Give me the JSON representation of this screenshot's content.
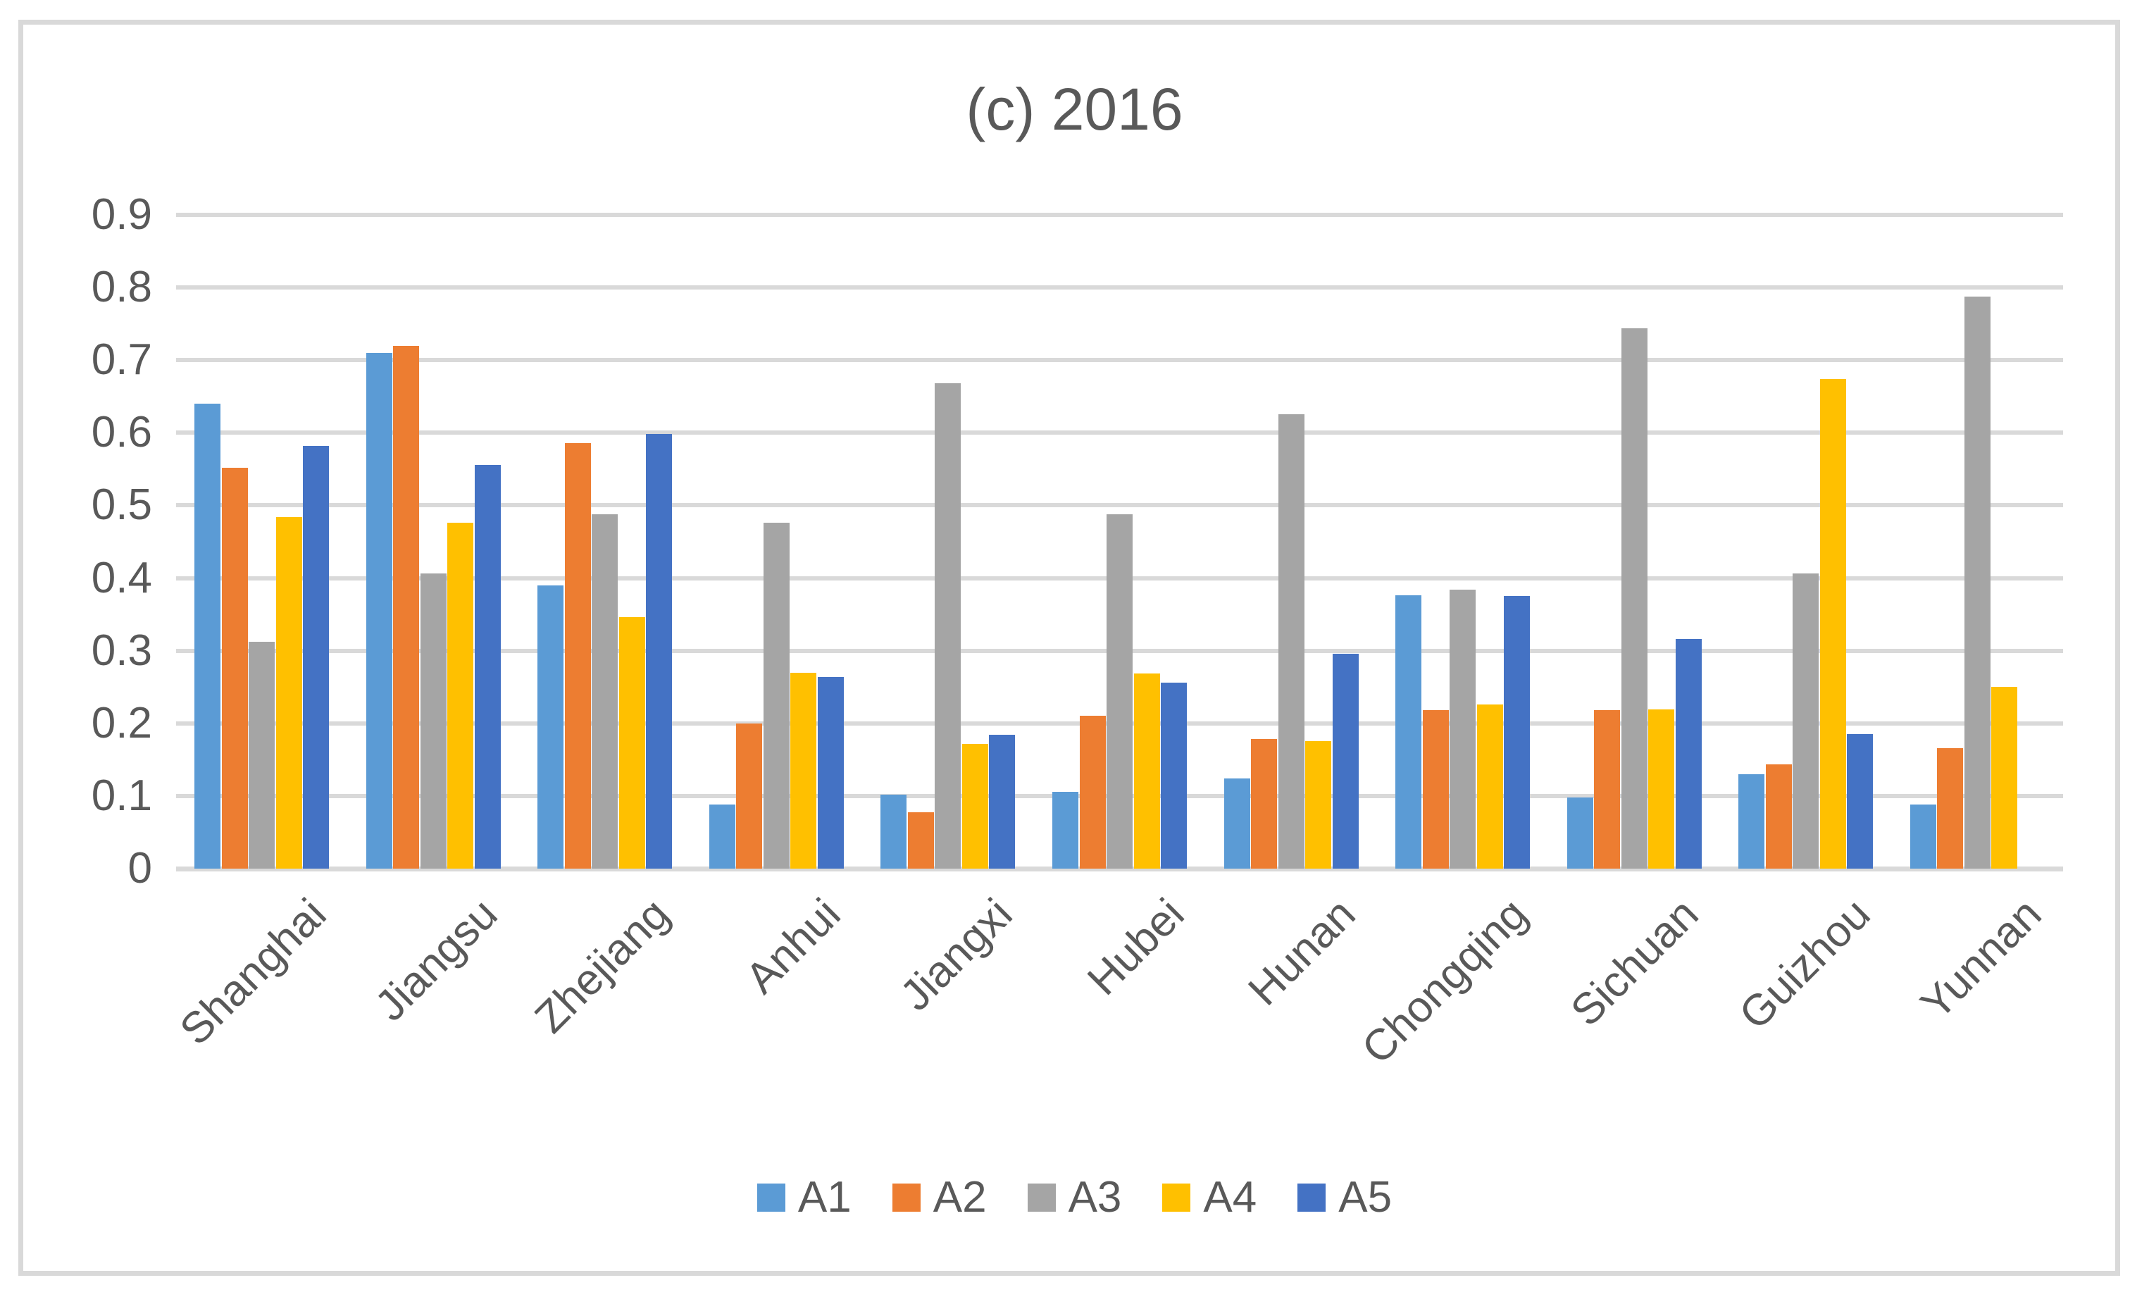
{
  "chart_data": {
    "type": "bar",
    "title": "(c) 2016",
    "categories": [
      "Shanghai",
      "Jiangsu",
      "Zhejiang",
      "Anhui",
      "Jiangxi",
      "Hubei",
      "Hunan",
      "Chongqing",
      "Sichuan",
      "Guizhou",
      "Yunnan"
    ],
    "series": [
      {
        "name": "A1",
        "color": "#5B9BD5",
        "values": [
          0.64,
          0.71,
          0.39,
          0.088,
          0.102,
          0.106,
          0.124,
          0.376,
          0.098,
          0.13,
          0.088
        ]
      },
      {
        "name": "A2",
        "color": "#ED7D31",
        "values": [
          0.552,
          0.72,
          0.586,
          0.2,
          0.078,
          0.21,
          0.178,
          0.218,
          0.218,
          0.144,
          0.166
        ]
      },
      {
        "name": "A3",
        "color": "#A5A5A5",
        "values": [
          0.312,
          0.406,
          0.488,
          0.476,
          0.668,
          0.488,
          0.626,
          0.384,
          0.744,
          0.406,
          0.788
        ]
      },
      {
        "name": "A4",
        "color": "#FFC000",
        "values": [
          0.484,
          0.476,
          0.346,
          0.27,
          0.172,
          0.269,
          0.176,
          0.226,
          0.219,
          0.674,
          0.25
        ]
      },
      {
        "name": "A5",
        "color": "#4472C4",
        "values": [
          0.582,
          0.556,
          0.598,
          0.264,
          0.184,
          0.256,
          0.296,
          0.375,
          0.316,
          0.185,
          0
        ]
      }
    ],
    "ylim": [
      0,
      0.9
    ],
    "ytick_labels": [
      "0",
      "0.1",
      "0.2",
      "0.3",
      "0.4",
      "0.5",
      "0.6",
      "0.7",
      "0.8",
      "0.9"
    ],
    "grid": true,
    "gridline_color": "#D9D9D9",
    "text_color": "#595959",
    "legend_position": "bottom",
    "legend_entries": [
      "A1",
      "A2",
      "A3",
      "A4",
      "A5"
    ]
  }
}
